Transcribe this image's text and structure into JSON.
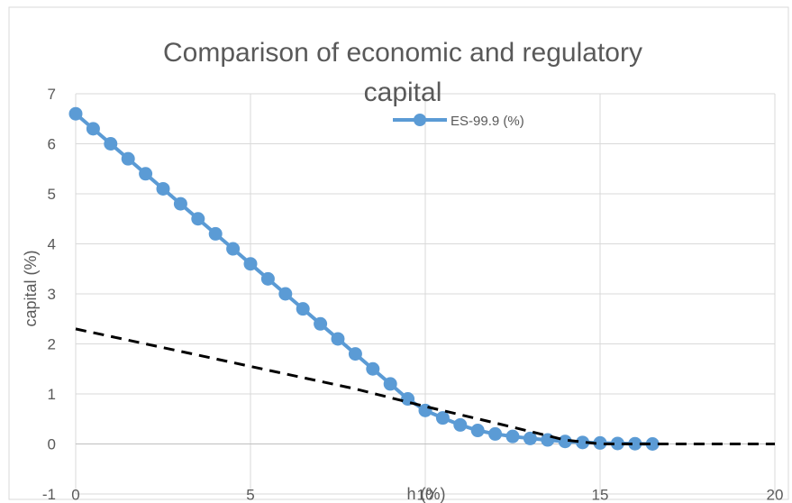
{
  "chart_data": {
    "type": "line",
    "title_line1": "Comparison of economic and regulatory",
    "title_line2": "capital",
    "xlabel": "h (%)",
    "ylabel": "capital (%)",
    "xlim": [
      0,
      20
    ],
    "ylim": [
      -1,
      7
    ],
    "x_ticks": [
      0,
      5,
      10,
      15,
      20
    ],
    "y_ticks": [
      -1,
      0,
      1,
      2,
      3,
      4,
      5,
      6,
      7
    ],
    "grid": true,
    "legend_position": "top-right",
    "colors": {
      "es": "#5b9bd5",
      "regulatory": "#000000",
      "grid": "#d9d9d9",
      "text": "#595959"
    },
    "series": [
      {
        "name": "ES-99.9 (%)",
        "style": "solid-marker",
        "x": [
          0,
          0.5,
          1,
          1.5,
          2,
          2.5,
          3,
          3.5,
          4,
          4.5,
          5,
          5.5,
          6,
          6.5,
          7,
          7.5,
          8,
          8.5,
          9,
          9.5,
          10,
          10.5,
          11,
          11.5,
          12,
          12.5,
          13,
          13.5,
          14,
          14.5,
          15,
          15.5,
          16,
          16.5
        ],
        "y": [
          6.6,
          6.3,
          6.0,
          5.7,
          5.4,
          5.1,
          4.8,
          4.5,
          4.2,
          3.9,
          3.6,
          3.3,
          3.0,
          2.7,
          2.4,
          2.1,
          1.8,
          1.5,
          1.2,
          0.9,
          0.67,
          0.52,
          0.38,
          0.27,
          0.2,
          0.15,
          0.11,
          0.08,
          0.05,
          0.03,
          0.02,
          0.01,
          0.005,
          0.0
        ]
      },
      {
        "style": "dashed",
        "x": [
          0,
          2,
          4,
          6,
          8,
          10,
          12,
          14,
          15,
          16,
          18,
          20
        ],
        "y": [
          2.3,
          2.0,
          1.7,
          1.4,
          1.1,
          0.75,
          0.42,
          0.08,
          0.0,
          0.0,
          0.0,
          0.0
        ]
      }
    ]
  }
}
